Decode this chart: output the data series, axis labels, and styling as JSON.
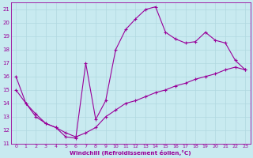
{
  "xlabel": "Windchill (Refroidissement éolien,°C)",
  "background_color": "#c8eaf0",
  "line_color": "#990099",
  "grid_color": "#b0d8e0",
  "xlim": [
    -0.5,
    23.5
  ],
  "ylim": [
    11,
    21.5
  ],
  "yticks": [
    11,
    12,
    13,
    14,
    15,
    16,
    17,
    18,
    19,
    20,
    21
  ],
  "xticks": [
    0,
    1,
    2,
    3,
    4,
    5,
    6,
    7,
    8,
    9,
    10,
    11,
    12,
    13,
    14,
    15,
    16,
    17,
    18,
    19,
    20,
    21,
    22,
    23
  ],
  "line1_x": [
    0,
    1,
    2,
    3,
    4,
    5,
    6,
    7,
    8,
    9,
    10,
    11,
    12,
    13,
    14,
    15,
    16,
    17,
    18,
    19,
    20,
    21,
    22,
    23
  ],
  "line1_y": [
    15.0,
    14.0,
    13.2,
    12.5,
    12.2,
    11.8,
    11.5,
    11.8,
    12.2,
    13.0,
    13.5,
    14.0,
    14.2,
    14.5,
    14.8,
    15.0,
    15.3,
    15.5,
    15.8,
    16.0,
    16.2,
    16.5,
    16.7,
    16.5
  ],
  "line2_x": [
    0,
    1,
    2,
    3,
    4,
    5,
    6,
    7,
    8,
    9,
    10,
    11,
    12,
    13,
    14,
    15,
    16,
    17,
    18,
    19,
    20,
    21,
    22,
    23
  ],
  "line2_y": [
    16.0,
    14.0,
    13.0,
    12.5,
    12.2,
    11.5,
    11.4,
    17.0,
    12.8,
    14.2,
    18.0,
    19.5,
    20.3,
    21.0,
    21.2,
    19.3,
    18.8,
    18.5,
    18.6,
    19.3,
    18.7,
    18.5,
    17.2,
    16.5
  ]
}
